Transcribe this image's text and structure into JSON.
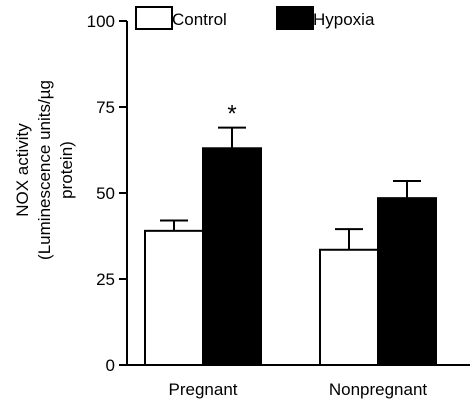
{
  "chart_data": {
    "type": "bar",
    "categories": [
      "Pregnant",
      "Nonpregnant"
    ],
    "series": [
      {
        "name": "Control",
        "values": [
          39,
          33.5
        ],
        "errors": [
          3,
          6
        ],
        "fill": "#ffffff"
      },
      {
        "name": "Hypoxia",
        "values": [
          63,
          48.5
        ],
        "errors": [
          6,
          5
        ],
        "fill": "#000000"
      }
    ],
    "ylabel": [
      "NOX activity",
      "(Luminescence units/µg",
      "protein)"
    ],
    "xlabel": "",
    "ylim": [
      0,
      100
    ],
    "yticks": [
      0,
      25,
      50,
      75,
      100
    ],
    "legend_position": "top",
    "annotations": [
      {
        "text": "*",
        "category": "Pregnant",
        "series": "Hypoxia"
      }
    ],
    "grid": false
  }
}
